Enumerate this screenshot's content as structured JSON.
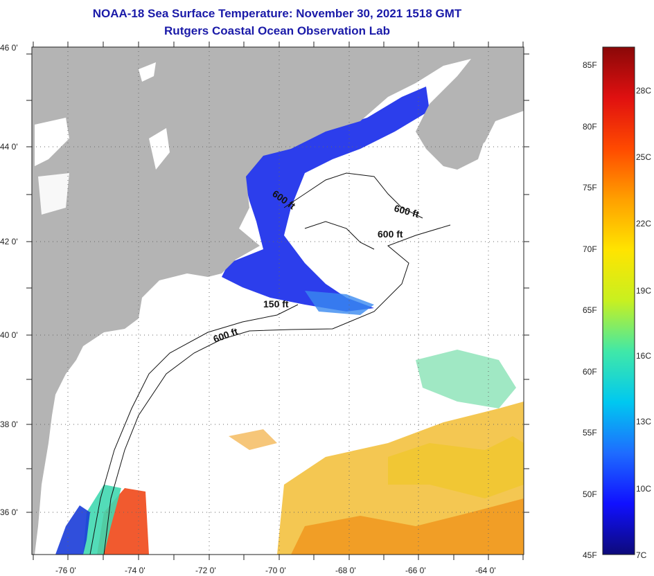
{
  "title_line1": "NOAA-18 Sea Surface Temperature:  November 30, 2021 1518 GMT",
  "title_line2": "Rutgers Coastal Ocean Observation Lab",
  "latitude_labels": [
    "46 0'",
    "44 0'",
    "42 0'",
    "40 0'",
    "38 0'",
    "36 0'"
  ],
  "longitude_labels": [
    "-76 0'",
    "-74 0'",
    "-72 0'",
    "-70 0'",
    "-68 0'",
    "-66 0'",
    "-64 0'"
  ],
  "contour_labels": [
    "600 ft",
    "600 ft",
    "600 ft",
    "150 ft",
    "600 ft"
  ],
  "colorbar": {
    "fahrenheit_labels": [
      "85F",
      "80F",
      "75F",
      "70F",
      "65F",
      "60F",
      "55F",
      "50F",
      "45F"
    ],
    "celsius_labels": [
      "28C",
      "25C",
      "22C",
      "19C",
      "16C",
      "13C",
      "10C",
      "7C"
    ],
    "colors": [
      "#0d0a7a",
      "#1010ff",
      "#1e6cff",
      "#00c8f0",
      "#40e8a8",
      "#c8f020",
      "#ffe400",
      "#ffa000",
      "#ff4a00",
      "#e01010",
      "#8a0808"
    ]
  },
  "colors": {
    "land": "#b4b4b4",
    "ocean": "#ffffff",
    "title": "#1a1aa8",
    "cold_water": "#1a2eea"
  }
}
